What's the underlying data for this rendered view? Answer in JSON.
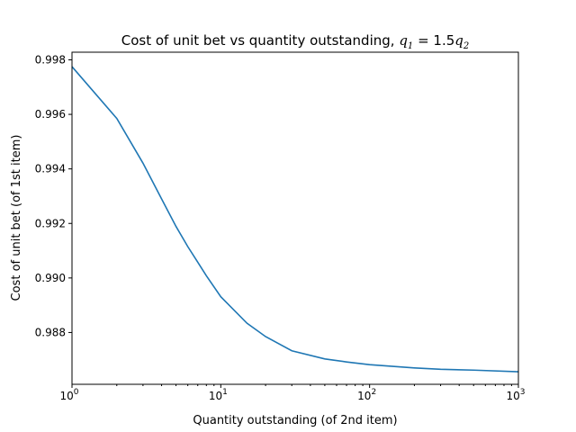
{
  "chart_data": {
    "type": "line",
    "title": {
      "text": "Cost of unit bet vs quantity outstanding, ",
      "math_q1": "q",
      "math_sub1": "1",
      "math_eq": " = 1.5",
      "math_q2": "q",
      "math_sub2": "2"
    },
    "xlabel": "Quantity outstanding (of 2nd item)",
    "ylabel": "Cost of unit bet (of 1st item)",
    "xscale": "log",
    "xlim": [
      1,
      1000
    ],
    "ylim": [
      0.9861,
      0.99828
    ],
    "grid": false,
    "x_ticks": [
      {
        "value": 1,
        "base": "10",
        "exp": "0"
      },
      {
        "value": 10,
        "base": "10",
        "exp": "1"
      },
      {
        "value": 100,
        "base": "10",
        "exp": "2"
      },
      {
        "value": 1000,
        "base": "10",
        "exp": "3"
      }
    ],
    "y_ticks": [
      {
        "value": 0.988,
        "label": "0.988"
      },
      {
        "value": 0.99,
        "label": "0.990"
      },
      {
        "value": 0.992,
        "label": "0.992"
      },
      {
        "value": 0.994,
        "label": "0.994"
      },
      {
        "value": 0.996,
        "label": "0.996"
      },
      {
        "value": 0.998,
        "label": "0.998"
      }
    ],
    "series": [
      {
        "color": "#1f77b4",
        "x": [
          1,
          2,
          3,
          4,
          5,
          6,
          7,
          8,
          10,
          15,
          20,
          30,
          50,
          70,
          100,
          200,
          300,
          500,
          1000
        ],
        "y": [
          0.99775,
          0.99585,
          0.99421,
          0.9929,
          0.99189,
          0.99115,
          0.99058,
          0.99008,
          0.98931,
          0.98834,
          0.98785,
          0.98733,
          0.98703,
          0.98692,
          0.98682,
          0.9867,
          0.98665,
          0.98662,
          0.98656
        ]
      }
    ]
  }
}
